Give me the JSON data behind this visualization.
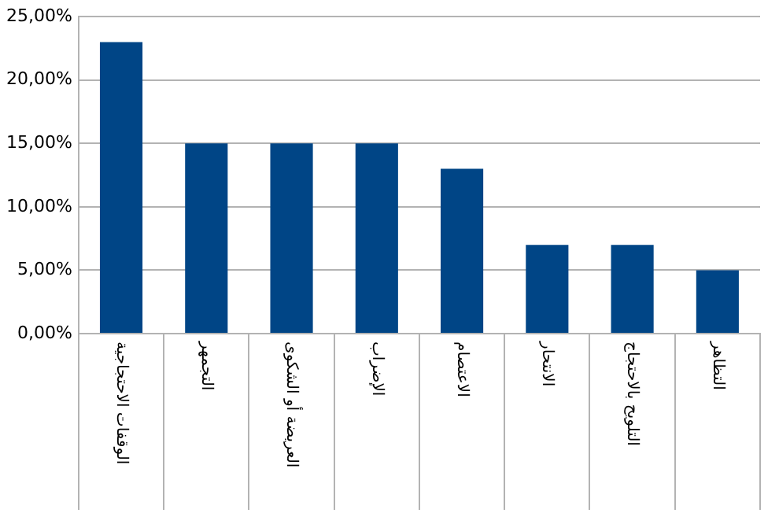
{
  "chart_data": {
    "type": "bar",
    "categories": [
      "الوقفات الاحتجاجية",
      "التجمهر",
      "العريضة أو الشكوى",
      "الإضراب",
      "الاعتصام",
      "الانتحار",
      "التلويح بالاحتجاج",
      "التظاهر"
    ],
    "values": [
      23,
      15,
      15,
      15,
      13,
      7,
      7,
      5
    ],
    "color": "#004586",
    "ylim": [
      0,
      25
    ],
    "yticks": [
      {
        "value": 0,
        "label": "0,00%"
      },
      {
        "value": 5,
        "label": "5,00%"
      },
      {
        "value": 10,
        "label": "10,00%"
      },
      {
        "value": 15,
        "label": "15,00%"
      },
      {
        "value": 20,
        "label": "20,00%"
      },
      {
        "value": 25,
        "label": "25,00%"
      }
    ],
    "grid": "y",
    "legend": false
  }
}
